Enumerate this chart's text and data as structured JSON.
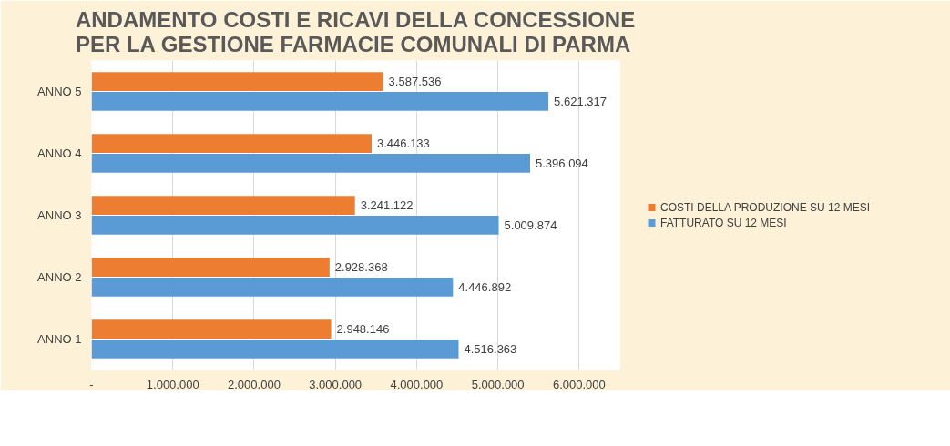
{
  "chart_data": {
    "type": "bar",
    "orientation": "horizontal",
    "title": "ANDAMENTO COSTI E RICAVI DELLA CONCESSIONE\nPER LA GESTIONE FARMACIE COMUNALI DI PARMA",
    "categories": [
      "ANNO 5",
      "ANNO 4",
      "ANNO 3",
      "ANNO 2",
      "ANNO 1"
    ],
    "series": [
      {
        "name": "COSTI DELLA PRODUZIONE SU 12 MESI",
        "color": "#ed7d31",
        "values": [
          3587536,
          3446133,
          3241122,
          2928368,
          2948146
        ],
        "value_labels": [
          "3.587.536",
          "3.446.133",
          "3.241.122",
          "2.928.368",
          "2.948.146"
        ]
      },
      {
        "name": "FATTURATO SU 12 MESI",
        "color": "#5b9bd5",
        "values": [
          5621317,
          5396094,
          5009874,
          4446892,
          4516363
        ],
        "value_labels": [
          "5.621.317",
          "5.396.094",
          "5.009.874",
          "4.446.892",
          "4.516.363"
        ]
      }
    ],
    "xlim": [
      0,
      6500000
    ],
    "xticks": [
      {
        "value": 0,
        "label": "-"
      },
      {
        "value": 1000000,
        "label": "1.000.000"
      },
      {
        "value": 2000000,
        "label": "2.000.000"
      },
      {
        "value": 3000000,
        "label": "3.000.000"
      },
      {
        "value": 4000000,
        "label": "4.000.000"
      },
      {
        "value": 5000000,
        "label": "5.000.000"
      },
      {
        "value": 6000000,
        "label": "6.000.000"
      }
    ],
    "grid": "x",
    "legend": "right"
  }
}
